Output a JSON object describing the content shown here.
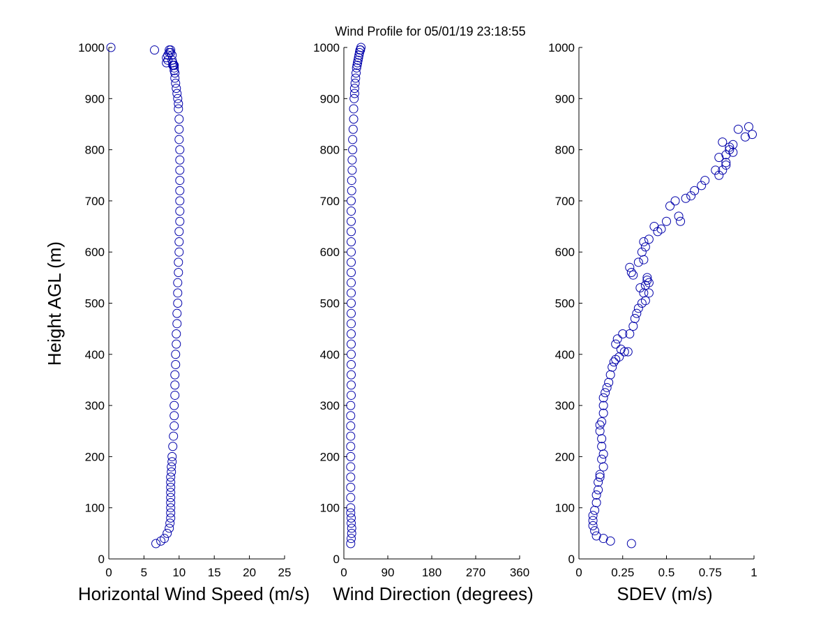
{
  "figure": {
    "title": "Wind Profile for  05/01/19 23:18:55"
  },
  "chart_data": [
    {
      "type": "scatter",
      "xlabel": "Horizontal Wind Speed (m/s)",
      "ylabel": "Height AGL (m)",
      "xlim": [
        0,
        25
      ],
      "ylim": [
        0,
        1000
      ],
      "xticks": [
        0,
        5,
        10,
        15,
        20,
        25
      ],
      "yticks": [
        0,
        100,
        200,
        300,
        400,
        500,
        600,
        700,
        800,
        900,
        1000
      ],
      "grid": false,
      "marker_color": "#0000aa",
      "series": [
        {
          "x": [
            6.7,
            7.4,
            7.9,
            8.3,
            8.6,
            8.7,
            8.8,
            8.8,
            8.8,
            8.8,
            8.8,
            8.8,
            8.8,
            8.8,
            8.8,
            8.9,
            8.9,
            9.0,
            9.0,
            9.1,
            9.2,
            9.3,
            9.3,
            9.3,
            9.4,
            9.4,
            9.4,
            9.5,
            9.5,
            9.6,
            9.6,
            9.7,
            9.7,
            9.8,
            9.8,
            9.8,
            9.9,
            9.9,
            10.0,
            10.0,
            10.0,
            10.1,
            10.1,
            10.1,
            10.1,
            10.1,
            10.1,
            10.1,
            10.1,
            10.0,
            10.0,
            10.0,
            9.9,
            9.9,
            9.8,
            9.7,
            9.6,
            9.5,
            9.4,
            9.4,
            9.3,
            9.3,
            9.3,
            9.2,
            9.2,
            9.1,
            9.1,
            9.0,
            9.0,
            8.8,
            8.8,
            8.6,
            8.6,
            8.4,
            8.2,
            8.4,
            8.2,
            6.5,
            0.3
          ],
          "y": [
            30,
            35,
            40,
            50,
            60,
            70,
            80,
            90,
            100,
            110,
            120,
            130,
            140,
            150,
            160,
            170,
            180,
            190,
            200,
            220,
            240,
            260,
            280,
            300,
            320,
            340,
            360,
            380,
            400,
            420,
            440,
            460,
            480,
            500,
            520,
            540,
            560,
            580,
            600,
            620,
            640,
            660,
            680,
            700,
            720,
            740,
            760,
            780,
            800,
            820,
            840,
            860,
            880,
            890,
            900,
            910,
            920,
            930,
            940,
            950,
            955,
            960,
            965,
            965,
            965,
            965,
            970,
            975,
            985,
            990,
            995,
            995,
            990,
            985,
            980,
            975,
            970,
            995,
            1000
          ]
        }
      ]
    },
    {
      "type": "scatter",
      "xlabel": "Wind Direction (degrees)",
      "ylabel": "",
      "xlim": [
        0,
        360
      ],
      "ylim": [
        0,
        1000
      ],
      "xticks": [
        0,
        90,
        180,
        270,
        360
      ],
      "yticks": [
        0,
        100,
        200,
        300,
        400,
        500,
        600,
        700,
        800,
        900,
        1000
      ],
      "grid": false,
      "marker_color": "#0000aa",
      "series": [
        {
          "x": [
            14,
            15,
            16,
            16,
            15,
            15,
            14,
            14,
            14,
            14,
            14,
            14,
            14,
            14,
            14,
            14,
            14,
            14,
            15,
            15,
            15,
            15,
            15,
            15,
            15,
            15,
            15,
            15,
            15,
            15,
            15,
            15,
            15,
            15,
            15,
            15,
            15,
            15,
            16,
            16,
            17,
            17,
            18,
            18,
            19,
            20,
            20,
            21,
            22,
            22,
            23,
            24,
            25,
            26,
            27,
            28,
            29,
            30,
            31,
            32,
            33,
            34,
            35
          ],
          "y": [
            30,
            40,
            50,
            60,
            70,
            80,
            90,
            100,
            120,
            140,
            160,
            180,
            200,
            220,
            240,
            260,
            280,
            300,
            320,
            340,
            360,
            380,
            400,
            420,
            440,
            460,
            480,
            500,
            520,
            540,
            560,
            580,
            600,
            620,
            640,
            660,
            680,
            700,
            720,
            740,
            760,
            780,
            800,
            820,
            840,
            860,
            880,
            900,
            910,
            920,
            930,
            940,
            950,
            960,
            965,
            970,
            975,
            980,
            985,
            990,
            995,
            995,
            1000
          ]
        }
      ]
    },
    {
      "type": "scatter",
      "xlabel": "SDEV  (m/s)",
      "ylabel": "",
      "xlim": [
        0,
        1
      ],
      "ylim": [
        0,
        1000
      ],
      "xticks": [
        0,
        0.25,
        0.5,
        0.75,
        1
      ],
      "xticklabels": [
        "0",
        "0.25",
        "0.5",
        "0.75",
        "1"
      ],
      "yticks": [
        0,
        100,
        200,
        300,
        400,
        500,
        600,
        700,
        800,
        900,
        1000
      ],
      "grid": false,
      "marker_color": "#0000aa",
      "series": [
        {
          "x": [
            0.3,
            0.18,
            0.14,
            0.1,
            0.09,
            0.08,
            0.08,
            0.08,
            0.09,
            0.1,
            0.1,
            0.11,
            0.11,
            0.12,
            0.12,
            0.14,
            0.13,
            0.14,
            0.13,
            0.13,
            0.12,
            0.12,
            0.13,
            0.14,
            0.14,
            0.14,
            0.15,
            0.16,
            0.17,
            0.18,
            0.19,
            0.2,
            0.21,
            0.23,
            0.26,
            0.28,
            0.21,
            0.22,
            0.24,
            0.25,
            0.29,
            0.31,
            0.32,
            0.33,
            0.34,
            0.36,
            0.38,
            0.37,
            0.4,
            0.39,
            0.35,
            0.38,
            0.39,
            0.4,
            0.3,
            0.29,
            0.31,
            0.34,
            0.37,
            0.36,
            0.38,
            0.37,
            0.4,
            0.43,
            0.45,
            0.47,
            0.5,
            0.52,
            0.55,
            0.57,
            0.58,
            0.61,
            0.64,
            0.66,
            0.7,
            0.72,
            0.78,
            0.8,
            0.82,
            0.84,
            0.84,
            0.8,
            0.84,
            0.86,
            0.88,
            0.82,
            0.86,
            0.88,
            0.91,
            0.95,
            0.97,
            0.99
          ],
          "y": [
            30,
            35,
            40,
            45,
            55,
            65,
            75,
            85,
            95,
            110,
            125,
            135,
            150,
            160,
            165,
            180,
            195,
            205,
            220,
            235,
            250,
            262,
            268,
            285,
            300,
            315,
            325,
            335,
            345,
            360,
            375,
            385,
            390,
            395,
            405,
            405,
            420,
            430,
            410,
            440,
            440,
            455,
            470,
            480,
            490,
            500,
            505,
            520,
            520,
            545,
            530,
            535,
            550,
            540,
            560,
            570,
            555,
            580,
            585,
            600,
            610,
            620,
            625,
            650,
            640,
            645,
            660,
            690,
            700,
            670,
            660,
            705,
            710,
            720,
            730,
            740,
            760,
            750,
            760,
            775,
            770,
            785,
            790,
            800,
            810,
            815,
            805,
            795,
            840,
            825,
            845,
            830
          ]
        }
      ]
    }
  ]
}
